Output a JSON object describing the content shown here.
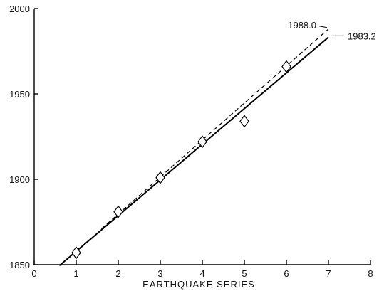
{
  "chart_data": {
    "type": "scatter",
    "title": "",
    "xlabel": "EARTHQUAKE SERIES",
    "ylabel": "",
    "xlim": [
      0,
      8
    ],
    "ylim": [
      1850,
      2000
    ],
    "x_ticks": [
      "0",
      "1",
      "2",
      "3",
      "4",
      "5",
      "6",
      "7",
      "8"
    ],
    "y_ticks": [
      "1850",
      "1900",
      "1950",
      "2000"
    ],
    "grid": false,
    "series": [
      {
        "kind": "points",
        "marker": "diamond",
        "x": [
          1,
          2,
          3,
          4,
          5,
          6
        ],
        "y": [
          1857,
          1881,
          1901,
          1922,
          1934,
          1966
        ]
      },
      {
        "kind": "line",
        "style": "solid",
        "x": [
          0.6,
          7
        ],
        "y": [
          1849.5,
          1983.2
        ],
        "end_label": "1983.2"
      },
      {
        "kind": "line",
        "style": "dashed",
        "x": [
          1.6,
          7
        ],
        "y": [
          1871,
          1988.0
        ],
        "end_label": "1988.0"
      }
    ],
    "colors": {
      "ink": "#000000",
      "background": "#ffffff"
    }
  }
}
